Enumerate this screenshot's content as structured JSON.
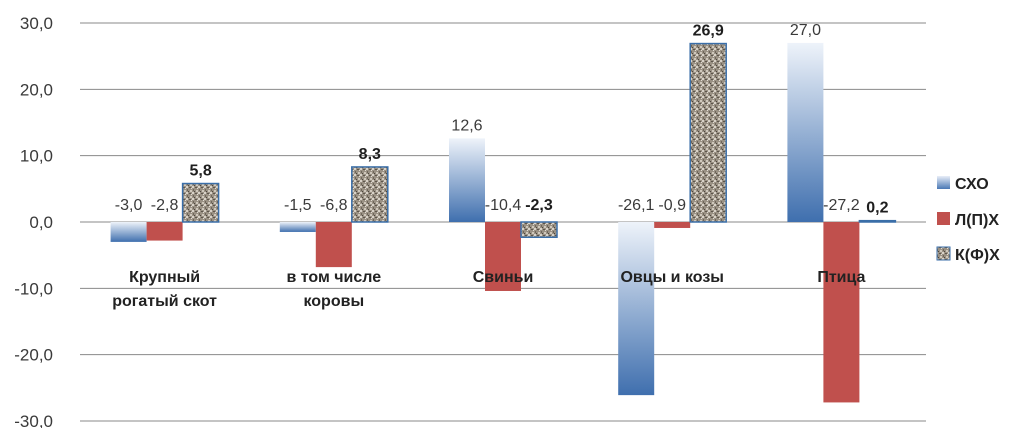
{
  "chart_data": {
    "type": "bar",
    "categories": [
      [
        "Крупный",
        "рогатый скот"
      ],
      [
        "в том числе",
        "коровы"
      ],
      [
        "Свиньи"
      ],
      [
        "Овцы и козы"
      ],
      [
        "Птица"
      ]
    ],
    "series": [
      {
        "name": "СХО",
        "values": [
          -3.0,
          -1.5,
          12.6,
          -26.1,
          27.0
        ],
        "labels": [
          "-3,0",
          "-1,5",
          "12,6",
          "-26,1",
          "27,0"
        ],
        "bold": false,
        "color": "#4f81bd"
      },
      {
        "name": "Л(П)Х",
        "values": [
          -2.8,
          -6.8,
          -10.4,
          -0.9,
          -27.2
        ],
        "labels": [
          "-2,8",
          "-6,8",
          "-10,4",
          "-0,9",
          "-27,2"
        ],
        "bold": false,
        "color": "#c0504d"
      },
      {
        "name": "К(Ф)Х",
        "values": [
          5.8,
          8.3,
          -2.3,
          26.9,
          0.2
        ],
        "labels": [
          "5,8",
          "8,3",
          "-2,3",
          "26,9",
          "0,2"
        ],
        "bold": true,
        "color": "#8a8070"
      }
    ],
    "yticks": [
      "30,0",
      "20,0",
      "10,0",
      "0,0",
      "-10,0",
      "-20,0",
      "-30,0"
    ],
    "ylim": [
      -30,
      30
    ],
    "grid": true,
    "legend": "right"
  }
}
